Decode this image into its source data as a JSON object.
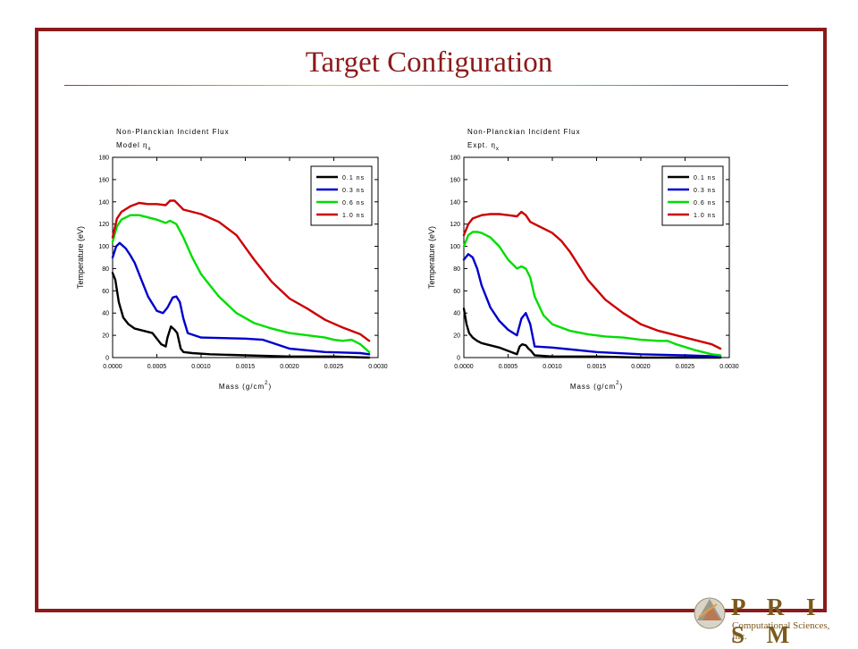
{
  "slide": {
    "title": "Target Configuration"
  },
  "logo": {
    "name": "P R I S M",
    "subtitle": "Computational Sciences, Inc."
  },
  "colors": {
    "frame": "#8b1a1a",
    "title": "#8b1a1a"
  },
  "chart_data": [
    {
      "type": "line",
      "title": "Non-Planckian Incident Flux",
      "subtitle": "Model η",
      "subtitle_subscript": "x",
      "xlabel": "Mass (g/cm",
      "xlabel_superscript": "2",
      "xlabel_close": ")",
      "ylabel": "Temperature (eV)",
      "xlim": [
        0,
        0.003
      ],
      "ylim": [
        0,
        180
      ],
      "xticks": [
        "0.0000",
        "0.0005",
        "0.0010",
        "0.0015",
        "0.0020",
        "0.0025",
        "0.0030"
      ],
      "yticks": [
        "0",
        "20",
        "40",
        "60",
        "80",
        "100",
        "120",
        "140",
        "160",
        "180"
      ],
      "legend": "top-right",
      "series": [
        {
          "name": "0.1 ns",
          "color": "#000000",
          "x": [
            0,
            3e-05,
            7e-05,
            0.00012,
            0.00018,
            0.00025,
            0.00035,
            0.00045,
            0.00055,
            0.0006,
            0.00062,
            0.00066,
            0.0007,
            0.00073,
            0.00077,
            0.0008,
            0.0009,
            0.0011,
            0.0015,
            0.002,
            0.0025,
            0.0029
          ],
          "y": [
            76,
            70,
            50,
            36,
            30,
            26,
            24,
            22,
            12,
            10,
            18,
            28,
            25,
            22,
            8,
            5,
            4,
            3,
            2,
            1,
            1,
            0
          ]
        },
        {
          "name": "0.3 ns",
          "color": "#0000cc",
          "x": [
            0,
            4e-05,
            8e-05,
            0.00015,
            0.0002,
            0.00025,
            0.0003,
            0.0004,
            0.0005,
            0.00057,
            0.00062,
            0.00068,
            0.00072,
            0.00076,
            0.0008,
            0.00085,
            0.001,
            0.0015,
            0.0017,
            0.002,
            0.0024,
            0.0028,
            0.0029
          ],
          "y": [
            90,
            100,
            103,
            98,
            92,
            85,
            75,
            55,
            42,
            40,
            45,
            54,
            55,
            50,
            35,
            22,
            18,
            17,
            16,
            8,
            5,
            4,
            3
          ]
        },
        {
          "name": "0.6 ns",
          "color": "#00dd00",
          "x": [
            0,
            5e-05,
            0.0001,
            0.0002,
            0.0003,
            0.0004,
            0.0005,
            0.0006,
            0.00065,
            0.00072,
            0.0008,
            0.0009,
            0.001,
            0.0012,
            0.0014,
            0.0016,
            0.0018,
            0.002,
            0.0022,
            0.0024,
            0.0025,
            0.0026,
            0.0027,
            0.0028,
            0.0029
          ],
          "y": [
            104,
            118,
            124,
            128,
            128,
            126,
            124,
            121,
            123,
            120,
            108,
            90,
            75,
            55,
            40,
            31,
            26,
            22,
            20,
            18,
            16,
            15,
            16,
            12,
            5
          ]
        },
        {
          "name": "1.0 ns",
          "color": "#cc0000",
          "x": [
            0,
            5e-05,
            0.0001,
            0.0002,
            0.0003,
            0.0004,
            0.0005,
            0.0006,
            0.00065,
            0.0007,
            0.00075,
            0.0008,
            0.001,
            0.0012,
            0.0014,
            0.0016,
            0.0018,
            0.002,
            0.0022,
            0.0024,
            0.0026,
            0.0028,
            0.0029
          ],
          "y": [
            108,
            125,
            131,
            136,
            139,
            138,
            138,
            137,
            141,
            141,
            137,
            133,
            129,
            122,
            110,
            88,
            68,
            53,
            44,
            34,
            27,
            21,
            15
          ]
        }
      ]
    },
    {
      "type": "line",
      "title": "Non-Planckian Incident Flux",
      "subtitle": "Expt. η",
      "subtitle_subscript": "x",
      "xlabel": "Mass (g/cm",
      "xlabel_superscript": "2",
      "xlabel_close": ")",
      "ylabel": "Temperature (eV)",
      "xlim": [
        0,
        0.003
      ],
      "ylim": [
        0,
        180
      ],
      "xticks": [
        "0.0000",
        "0.0005",
        "0.0010",
        "0.0015",
        "0.0020",
        "0.0025",
        "0.0030"
      ],
      "yticks": [
        "0",
        "20",
        "40",
        "60",
        "80",
        "100",
        "120",
        "140",
        "160",
        "180"
      ],
      "legend": "top-right",
      "series": [
        {
          "name": "0.1 ns",
          "color": "#000000",
          "x": [
            0,
            3e-05,
            6e-05,
            0.0001,
            0.00015,
            0.0002,
            0.0003,
            0.0004,
            0.0005,
            0.0006,
            0.00063,
            0.00066,
            0.0007,
            0.00073,
            0.00076,
            0.0008,
            0.001,
            0.0015,
            0.002,
            0.0025,
            0.0029
          ],
          "y": [
            44,
            30,
            22,
            18,
            15,
            13,
            11,
            9,
            6,
            3,
            10,
            12,
            11,
            8,
            6,
            2,
            1,
            1,
            0,
            0,
            0
          ]
        },
        {
          "name": "0.3 ns",
          "color": "#0000cc",
          "x": [
            0,
            5e-05,
            0.0001,
            0.00015,
            0.0002,
            0.0003,
            0.0004,
            0.0005,
            0.0006,
            0.00065,
            0.0007,
            0.00075,
            0.0008,
            0.001,
            0.0015,
            0.002,
            0.0025,
            0.0029
          ],
          "y": [
            88,
            93,
            90,
            80,
            65,
            45,
            33,
            25,
            20,
            35,
            40,
            30,
            10,
            9,
            5,
            3,
            2,
            1
          ]
        },
        {
          "name": "0.6 ns",
          "color": "#00dd00",
          "x": [
            0,
            5e-05,
            0.0001,
            0.00015,
            0.0002,
            0.0003,
            0.0004,
            0.0005,
            0.0006,
            0.00065,
            0.0007,
            0.00075,
            0.0008,
            0.0009,
            0.001,
            0.0012,
            0.0014,
            0.0016,
            0.0018,
            0.002,
            0.0022,
            0.0023,
            0.0024,
            0.0026,
            0.0028,
            0.0029
          ],
          "y": [
            100,
            110,
            113,
            113,
            112,
            108,
            100,
            88,
            80,
            82,
            80,
            72,
            55,
            38,
            30,
            24,
            21,
            19,
            18,
            16,
            15,
            15,
            12,
            7,
            3,
            2
          ]
        },
        {
          "name": "1.0 ns",
          "color": "#cc0000",
          "x": [
            0,
            5e-05,
            0.0001,
            0.0002,
            0.0003,
            0.0004,
            0.0005,
            0.0006,
            0.00065,
            0.0007,
            0.00075,
            0.0008,
            0.001,
            0.0011,
            0.0012,
            0.0014,
            0.0016,
            0.0018,
            0.002,
            0.0022,
            0.0024,
            0.0026,
            0.0028,
            0.0029
          ],
          "y": [
            110,
            120,
            125,
            128,
            129,
            129,
            128,
            127,
            131,
            128,
            122,
            120,
            112,
            105,
            95,
            70,
            52,
            40,
            30,
            24,
            20,
            16,
            12,
            8
          ]
        }
      ]
    }
  ]
}
